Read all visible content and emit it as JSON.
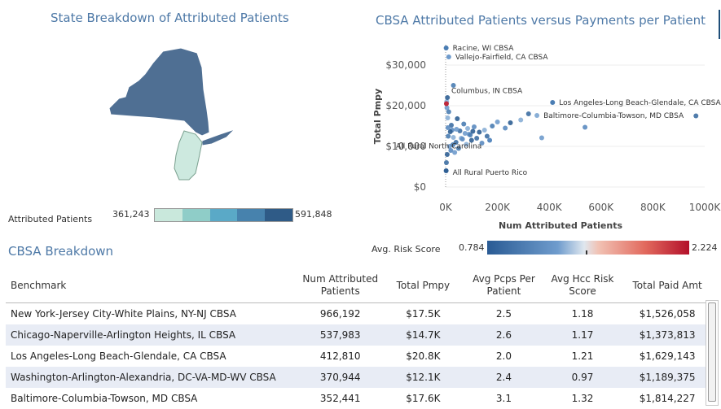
{
  "state_panel": {
    "title": "State Breakdown of Attributed Patients",
    "legend_label": "Attributed Patients",
    "legend_min": "361,243",
    "legend_max": "591,848",
    "legend_colors": [
      "#c9e8dc",
      "#8fcdc8",
      "#5aa9c7",
      "#4782ad",
      "#2f5b87"
    ]
  },
  "scatter_panel": {
    "title": "CBSA Attributed Patients versus Payments per Patient",
    "risk_label": "Avg. Risk Score",
    "risk_min": "0.784",
    "risk_max": "2.224"
  },
  "chart_data": {
    "type": "scatter",
    "title": "CBSA Attributed Patients versus Payments per Patient",
    "xlabel": "Num Attributed Patients",
    "ylabel": "Total Pmpy",
    "xlim": [
      0,
      1000000
    ],
    "ylim": [
      0,
      35000
    ],
    "xticks": [
      "0K",
      "200K",
      "400K",
      "600K",
      "800K",
      "1000K"
    ],
    "yticks": [
      "$0",
      "$10,000",
      "$20,000",
      "$30,000"
    ],
    "color_by": "Avg. Risk Score",
    "labeled_points": [
      {
        "label": "Racine, WI CBSA",
        "x": 2000,
        "y": 34200
      },
      {
        "label": "Vallejo-Fairfield, CA CBSA",
        "x": 12000,
        "y": 32000
      },
      {
        "label": "Columbus, IN CBSA",
        "x": 3000,
        "y": 20500
      },
      {
        "label": "Los Angeles-Long Beach-Glendale, CA CBSA",
        "x": 412810,
        "y": 20800
      },
      {
        "label": "Baltimore-Columbia-Towson, MD CBSA",
        "x": 352441,
        "y": 17600
      },
      {
        "label": "All Rural North Carolina",
        "x": 170000,
        "y": 11500
      },
      {
        "label": "All Rural Puerto Rico",
        "x": 2000,
        "y": 4000
      }
    ],
    "other_points": [
      {
        "x": 966192,
        "y": 17500
      },
      {
        "x": 537983,
        "y": 14700
      },
      {
        "x": 370944,
        "y": 12100
      },
      {
        "x": 30000,
        "y": 25000
      },
      {
        "x": 290000,
        "y": 16500
      },
      {
        "x": 250000,
        "y": 15800
      },
      {
        "x": 320000,
        "y": 18000
      },
      {
        "x": 230000,
        "y": 14500
      },
      {
        "x": 200000,
        "y": 16000
      },
      {
        "x": 180000,
        "y": 15000
      },
      {
        "x": 150000,
        "y": 14000
      },
      {
        "x": 130000,
        "y": 13500
      },
      {
        "x": 160000,
        "y": 12500
      },
      {
        "x": 110000,
        "y": 14800
      },
      {
        "x": 90000,
        "y": 13000
      },
      {
        "x": 70000,
        "y": 15500
      },
      {
        "x": 60000,
        "y": 12000
      },
      {
        "x": 45000,
        "y": 16800
      },
      {
        "x": 40000,
        "y": 11000
      },
      {
        "x": 25000,
        "y": 14000
      },
      {
        "x": 15000,
        "y": 10000
      },
      {
        "x": 10000,
        "y": 12500
      },
      {
        "x": 8000,
        "y": 17000
      },
      {
        "x": 6000,
        "y": 8000
      },
      {
        "x": 3000,
        "y": 6000
      },
      {
        "x": 20000,
        "y": 9000
      },
      {
        "x": 35000,
        "y": 8500
      },
      {
        "x": 50000,
        "y": 9500
      },
      {
        "x": 80000,
        "y": 10500
      },
      {
        "x": 100000,
        "y": 11500
      },
      {
        "x": 120000,
        "y": 12000
      },
      {
        "x": 140000,
        "y": 10800
      },
      {
        "x": 5000,
        "y": 19500
      },
      {
        "x": 12000,
        "y": 18500
      },
      {
        "x": 4000,
        "y": 21000
      },
      {
        "x": 7000,
        "y": 22000
      },
      {
        "x": 55000,
        "y": 13800
      },
      {
        "x": 65000,
        "y": 11800
      },
      {
        "x": 75000,
        "y": 13200
      },
      {
        "x": 95000,
        "y": 12800
      },
      {
        "x": 30000,
        "y": 12200
      },
      {
        "x": 18000,
        "y": 13600
      },
      {
        "x": 22000,
        "y": 15200
      },
      {
        "x": 9000,
        "y": 14600
      },
      {
        "x": 42000,
        "y": 14200
      },
      {
        "x": 28000,
        "y": 10400
      },
      {
        "x": 85000,
        "y": 14400
      },
      {
        "x": 105000,
        "y": 13700
      }
    ]
  },
  "cbsa": {
    "title": "CBSA Breakdown",
    "headers": {
      "benchmark": "Benchmark",
      "num_line1": "Num Attributed",
      "num_line2": "Patients",
      "total_pmpy": "Total Pmpy",
      "pcps_line1": "Avg Pcps Per",
      "pcps_line2": "Patient",
      "hcc_line1": "Avg Hcc Risk",
      "hcc_line2": "Score",
      "paid": "Total Paid Amt"
    },
    "rows": [
      {
        "benchmark": "New York-Jersey City-White Plains, NY-NJ CBSA",
        "num": "966,192",
        "pmpy": "$17.5K",
        "pcps": "2.5",
        "hcc": "1.18",
        "paid": "$1,526,058"
      },
      {
        "benchmark": "Chicago-Naperville-Arlington Heights, IL CBSA",
        "num": "537,983",
        "pmpy": "$14.7K",
        "pcps": "2.6",
        "hcc": "1.17",
        "paid": "$1,373,813"
      },
      {
        "benchmark": "Los Angeles-Long Beach-Glendale, CA CBSA",
        "num": "412,810",
        "pmpy": "$20.8K",
        "pcps": "2.0",
        "hcc": "1.21",
        "paid": "$1,629,143"
      },
      {
        "benchmark": "Washington-Arlington-Alexandria, DC-VA-MD-WV CBSA",
        "num": "370,944",
        "pmpy": "$12.1K",
        "pcps": "2.4",
        "hcc": "0.97",
        "paid": "$1,189,375"
      },
      {
        "benchmark": "Baltimore-Columbia-Towson, MD CBSA",
        "num": "352,441",
        "pmpy": "$17.6K",
        "pcps": "3.1",
        "hcc": "1.32",
        "paid": "$1,814,227"
      }
    ]
  }
}
